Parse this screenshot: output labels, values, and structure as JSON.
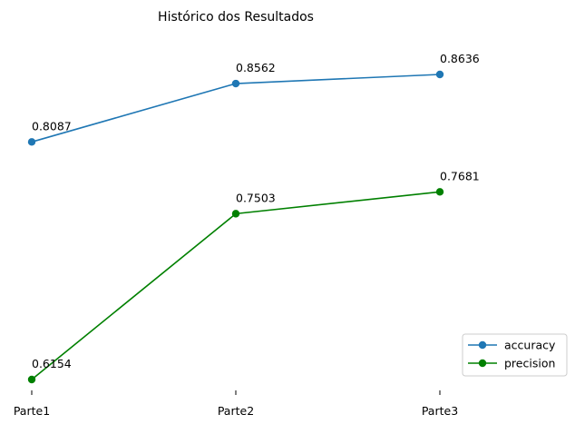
{
  "chart_data": {
    "type": "line",
    "title": "Histórico dos Resultados",
    "categories": [
      "Parte1",
      "Parte2",
      "Parte3"
    ],
    "series": [
      {
        "name": "accuracy",
        "values": [
          0.8087,
          0.8562,
          0.8636
        ],
        "labels": [
          "0.8087",
          "0.8562",
          "0.8636"
        ],
        "color": "#1f77b4"
      },
      {
        "name": "precision",
        "values": [
          0.6154,
          0.7503,
          0.7681
        ],
        "labels": [
          "0.6154",
          "0.7503",
          "0.7681"
        ],
        "color": "#008000"
      }
    ],
    "legend_position": "lower-right",
    "grid": false,
    "xlabel": "",
    "ylabel": ""
  }
}
